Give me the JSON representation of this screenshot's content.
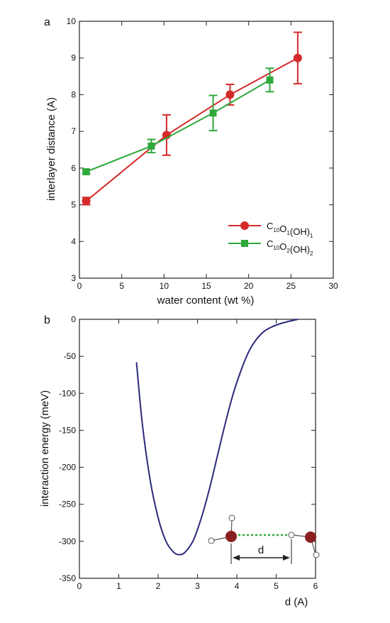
{
  "chart_data": [
    {
      "panel_label": "a",
      "type": "line",
      "xlabel": "water content (wt %)",
      "ylabel": "interlayer distance (A)",
      "xlim": [
        0,
        30
      ],
      "ylim": [
        3,
        10
      ],
      "xticks": [
        0,
        5,
        10,
        15,
        20,
        25,
        30
      ],
      "yticks": [
        3,
        4,
        5,
        6,
        7,
        8,
        9,
        10
      ],
      "xtick_labels": [
        "0",
        "5",
        "10",
        "15",
        "20",
        "25",
        "30"
      ],
      "ytick_labels": [
        "3",
        "4",
        "5",
        "6",
        "7",
        "8",
        "9",
        "10"
      ],
      "legend_position": "lower-right",
      "series": [
        {
          "name": "C10O1(OH)1",
          "legend": {
            "base": [
              "C",
              "O",
              "(OH)"
            ],
            "subs": [
              "10",
              "1",
              "1"
            ]
          },
          "color": "#d42a2a",
          "marker": "circle",
          "x": [
            0.8,
            10.3,
            17.8,
            25.8
          ],
          "y": [
            5.1,
            6.9,
            8.0,
            9.0
          ],
          "yerr": [
            0.1,
            0.55,
            0.28,
            0.7
          ]
        },
        {
          "name": "C10O2(OH)2",
          "legend": {
            "base": [
              "C",
              "O",
              "(OH)"
            ],
            "subs": [
              "10",
              "2",
              "2"
            ]
          },
          "color": "#2fa83a",
          "marker": "square",
          "x": [
            0.8,
            8.5,
            15.8,
            22.5
          ],
          "y": [
            5.9,
            6.6,
            7.5,
            8.4
          ],
          "yerr": [
            0.05,
            0.18,
            0.48,
            0.32
          ]
        }
      ]
    },
    {
      "panel_label": "b",
      "type": "line",
      "xlabel": "d (A)",
      "ylabel": "interaction energy (meV)",
      "xlim": [
        0,
        6
      ],
      "ylim": [
        -350,
        0
      ],
      "xticks": [
        0,
        1,
        2,
        3,
        4,
        5,
        6
      ],
      "yticks": [
        0,
        -50,
        -100,
        -150,
        -200,
        -250,
        -300,
        -350
      ],
      "xtick_labels": [
        "0",
        "1",
        "2",
        "3",
        "4",
        "5",
        "6"
      ],
      "ytick_labels": [
        "0",
        "-50",
        "-100",
        "-150",
        "-200",
        "-250",
        "-300",
        "-350"
      ],
      "series": [
        {
          "color": "#2b2a7a",
          "x": [
            1.45,
            1.6,
            1.8,
            2.0,
            2.2,
            2.4,
            2.55,
            2.7,
            2.9,
            3.1,
            3.3,
            3.5,
            3.7,
            3.9,
            4.1,
            4.3,
            4.5,
            4.7,
            4.9,
            5.1,
            5.3,
            5.55
          ],
          "y": [
            -58,
            -142,
            -218,
            -268,
            -300,
            -315,
            -318,
            -314,
            -298,
            -268,
            -230,
            -186,
            -142,
            -102,
            -70,
            -44,
            -27,
            -16,
            -10,
            -6,
            -3,
            0
          ]
        }
      ],
      "inset": {
        "label": "d"
      }
    }
  ]
}
